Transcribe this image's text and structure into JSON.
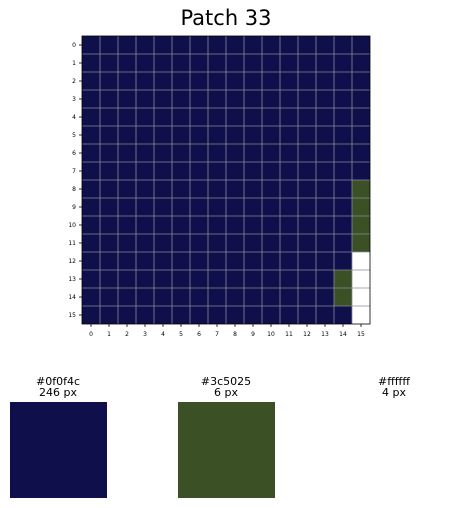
{
  "title": "Patch 33",
  "chart_data": {
    "type": "heatmap",
    "title": "Patch 33",
    "rows": 16,
    "cols": 16,
    "x_ticks": [
      "0",
      "1",
      "2",
      "3",
      "4",
      "5",
      "6",
      "7",
      "8",
      "9",
      "10",
      "11",
      "12",
      "13",
      "14",
      "15"
    ],
    "y_ticks": [
      "0",
      "1",
      "2",
      "3",
      "4",
      "5",
      "6",
      "7",
      "8",
      "9",
      "10",
      "11",
      "12",
      "13",
      "14",
      "15"
    ],
    "grid": true,
    "palette": [
      {
        "hex": "#0f0f4c",
        "label": "#0f0f4c",
        "count_label": "246 px",
        "count": 246
      },
      {
        "hex": "#3c5025",
        "label": "#3c5025",
        "count_label": "6 px",
        "count": 6
      },
      {
        "hex": "#ffffff",
        "label": "#ffffff",
        "count_label": "4 px",
        "count": 4
      }
    ],
    "pixels": [
      [
        0,
        0,
        0,
        0,
        0,
        0,
        0,
        0,
        0,
        0,
        0,
        0,
        0,
        0,
        0,
        0
      ],
      [
        0,
        0,
        0,
        0,
        0,
        0,
        0,
        0,
        0,
        0,
        0,
        0,
        0,
        0,
        0,
        0
      ],
      [
        0,
        0,
        0,
        0,
        0,
        0,
        0,
        0,
        0,
        0,
        0,
        0,
        0,
        0,
        0,
        0
      ],
      [
        0,
        0,
        0,
        0,
        0,
        0,
        0,
        0,
        0,
        0,
        0,
        0,
        0,
        0,
        0,
        0
      ],
      [
        0,
        0,
        0,
        0,
        0,
        0,
        0,
        0,
        0,
        0,
        0,
        0,
        0,
        0,
        0,
        0
      ],
      [
        0,
        0,
        0,
        0,
        0,
        0,
        0,
        0,
        0,
        0,
        0,
        0,
        0,
        0,
        0,
        0
      ],
      [
        0,
        0,
        0,
        0,
        0,
        0,
        0,
        0,
        0,
        0,
        0,
        0,
        0,
        0,
        0,
        0
      ],
      [
        0,
        0,
        0,
        0,
        0,
        0,
        0,
        0,
        0,
        0,
        0,
        0,
        0,
        0,
        0,
        0
      ],
      [
        0,
        0,
        0,
        0,
        0,
        0,
        0,
        0,
        0,
        0,
        0,
        0,
        0,
        0,
        0,
        1
      ],
      [
        0,
        0,
        0,
        0,
        0,
        0,
        0,
        0,
        0,
        0,
        0,
        0,
        0,
        0,
        0,
        1
      ],
      [
        0,
        0,
        0,
        0,
        0,
        0,
        0,
        0,
        0,
        0,
        0,
        0,
        0,
        0,
        0,
        1
      ],
      [
        0,
        0,
        0,
        0,
        0,
        0,
        0,
        0,
        0,
        0,
        0,
        0,
        0,
        0,
        0,
        1
      ],
      [
        0,
        0,
        0,
        0,
        0,
        0,
        0,
        0,
        0,
        0,
        0,
        0,
        0,
        0,
        0,
        2
      ],
      [
        0,
        0,
        0,
        0,
        0,
        0,
        0,
        0,
        0,
        0,
        0,
        0,
        0,
        0,
        1,
        2
      ],
      [
        0,
        0,
        0,
        0,
        0,
        0,
        0,
        0,
        0,
        0,
        0,
        0,
        0,
        0,
        1,
        2
      ],
      [
        0,
        0,
        0,
        0,
        0,
        0,
        0,
        0,
        0,
        0,
        0,
        0,
        0,
        0,
        0,
        2
      ]
    ]
  }
}
